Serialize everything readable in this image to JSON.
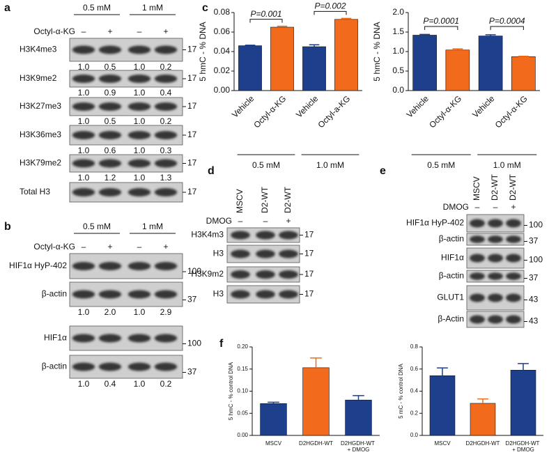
{
  "blots": {
    "a": {
      "label": "a",
      "conditions": [
        "0.5 mM",
        "1 mM"
      ],
      "treatment": "Octyl-α-KG",
      "lanes": [
        "–",
        "+",
        "–",
        "+"
      ],
      "rows": [
        {
          "name": "H3K4me3",
          "marker": "17",
          "quant": [
            "1.0",
            "0.5",
            "1.0",
            "0.2"
          ]
        },
        {
          "name": "H3K9me2",
          "marker": "17",
          "quant": [
            "1.0",
            "0.9",
            "1.0",
            "0.4"
          ]
        },
        {
          "name": "H3K27me3",
          "marker": "17",
          "quant": [
            "1.0",
            "0.5",
            "1.0",
            "0.2"
          ]
        },
        {
          "name": "H3K36me3",
          "marker": "17",
          "quant": [
            "1.0",
            "0.6",
            "1.0",
            "0.3"
          ]
        },
        {
          "name": "H3K79me2",
          "marker": "17",
          "quant": [
            "1.0",
            "1.2",
            "1.0",
            "1.3"
          ]
        },
        {
          "name": "Total H3",
          "marker": "17"
        }
      ]
    },
    "b": {
      "label": "b",
      "conditions": [
        "0.5 mM",
        "1 mM"
      ],
      "treatment": "Octyl-α-KG",
      "lanes": [
        "–",
        "+",
        "–",
        "+"
      ],
      "rows": [
        {
          "name": "HIF1α HyP-402",
          "marker": "100"
        },
        {
          "name": "β-actin",
          "marker": "37",
          "quant": [
            "1.0",
            "2.0",
            "1.0",
            "2.9"
          ]
        },
        {
          "name": "HIF1α",
          "marker": "100"
        },
        {
          "name": "β-actin",
          "marker": "37",
          "quant": [
            "1.0",
            "0.4",
            "1.0",
            "0.2"
          ]
        }
      ]
    },
    "d": {
      "label": "d",
      "samples": [
        "MSCV",
        "D2-WT",
        "D2-WT"
      ],
      "treatment": "DMOG",
      "lanes": [
        "–",
        "–",
        "+"
      ],
      "rows": [
        {
          "name": "H3K4m3",
          "marker": "17"
        },
        {
          "name": "H3",
          "marker": "17"
        },
        {
          "name": "H3K9m2",
          "marker": "17"
        },
        {
          "name": "H3",
          "marker": "17"
        }
      ]
    },
    "e": {
      "label": "e",
      "samples": [
        "MSCV",
        "D2-WT",
        "D2-WT"
      ],
      "treatment": "DMOG",
      "lanes": [
        "–",
        "–",
        "+"
      ],
      "rows": [
        {
          "name": "HIF1α HyP-402",
          "marker": "100"
        },
        {
          "name": "β-actin",
          "marker": "37"
        },
        {
          "name": "HIF1α",
          "marker": "100"
        },
        {
          "name": "β-actin",
          "marker": "37"
        },
        {
          "name": "GLUT1",
          "marker": "43"
        },
        {
          "name": "β-Actin",
          "marker": "43"
        }
      ]
    }
  },
  "panel_labels": [
    "c",
    "f"
  ],
  "chart_data": [
    {
      "type": "bar",
      "ylabel": "5 hmC - % DNA",
      "categories": [
        "Vehicle",
        "Octyl-α-KG",
        "Vehicle",
        "Octyl-a-KG"
      ],
      "values": [
        0.046,
        0.065,
        0.045,
        0.073
      ],
      "errors": [
        0.0005,
        0.001,
        0.002,
        0.001
      ],
      "colors": [
        "#1d3f8c",
        "#f26a1b",
        "#1d3f8c",
        "#f26a1b"
      ],
      "ylim": [
        0,
        0.08
      ],
      "yticks": [
        {
          "value": 0,
          "label": "0.00"
        },
        {
          "value": 0.02,
          "label": "0.02"
        },
        {
          "value": 0.04,
          "label": "0.04"
        },
        {
          "value": 0.06,
          "label": "0.06"
        },
        {
          "value": 0.08,
          "label": "0.08"
        }
      ],
      "pvalues": [
        "P=0.001",
        "P=0.002"
      ],
      "groups": [
        "0.5 mM",
        "1.0 mM"
      ]
    },
    {
      "type": "bar",
      "ylabel": "5 hmC - % DNA",
      "categories": [
        "Vehicle",
        "Octyl-α-KG",
        "Vehicle",
        "Octyl-α-KG"
      ],
      "values": [
        1.42,
        1.04,
        1.4,
        0.87
      ],
      "errors": [
        0.02,
        0.03,
        0.03,
        0.01
      ],
      "colors": [
        "#1d3f8c",
        "#f26a1b",
        "#1d3f8c",
        "#f26a1b"
      ],
      "ylim": [
        0,
        2
      ],
      "yticks": [
        {
          "value": 0,
          "label": "0.0"
        },
        {
          "value": 0.5,
          "label": "0.5"
        },
        {
          "value": 1,
          "label": "1.0"
        },
        {
          "value": 1.5,
          "label": "1.5"
        },
        {
          "value": 2,
          "label": "2.0"
        }
      ],
      "pvalues": [
        "P=0.0001",
        "P=0.0004"
      ],
      "groups": [
        "0.5 mM",
        "1.0 mM"
      ]
    },
    {
      "type": "bar",
      "ylabel": "5 hmC - % control DNA",
      "categories": [
        "MSCV",
        "D2HGDH-WT",
        "D2HGDH-WT + DMOG"
      ],
      "values": [
        0.072,
        0.153,
        0.08
      ],
      "errors": [
        0.003,
        0.022,
        0.01
      ],
      "colors": [
        "#1d3f8c",
        "#f26a1b",
        "#1d3f8c"
      ],
      "ylim": [
        0,
        0.2
      ],
      "yticks": [
        {
          "value": 0,
          "label": "0.00"
        },
        {
          "value": 0.05,
          "label": "0.05"
        },
        {
          "value": 0.1,
          "label": "0.10"
        },
        {
          "value": 0.15,
          "label": "0.15"
        },
        {
          "value": 0.2,
          "label": "0.20"
        }
      ]
    },
    {
      "type": "bar",
      "ylabel": "5 mC - % control DNA",
      "categories": [
        "MSCV",
        "D2HGDH-WT",
        "D2HGDH-WT + DMOG"
      ],
      "values": [
        0.54,
        0.29,
        0.59
      ],
      "errors": [
        0.07,
        0.04,
        0.06
      ],
      "colors": [
        "#1d3f8c",
        "#f26a1b",
        "#1d3f8c"
      ],
      "ylim": [
        0,
        0.8
      ],
      "yticks": [
        {
          "value": 0,
          "label": "0.0"
        },
        {
          "value": 0.2,
          "label": "0.2"
        },
        {
          "value": 0.4,
          "label": "0.4"
        },
        {
          "value": 0.6,
          "label": "0.6"
        },
        {
          "value": 0.8,
          "label": "0.8"
        }
      ]
    }
  ]
}
